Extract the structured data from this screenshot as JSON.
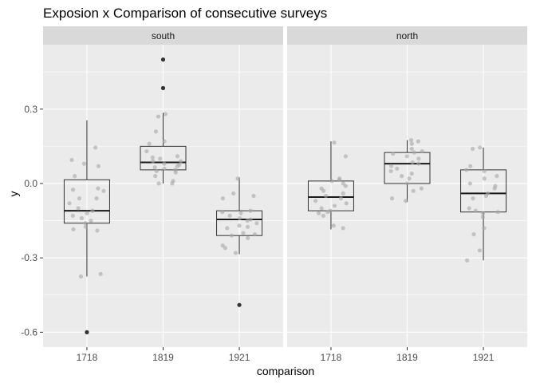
{
  "chart_data": {
    "type": "boxplot",
    "title": "Exposion x Comparison of consecutive surveys",
    "xlabel": "comparison",
    "ylabel": "y",
    "ylim": [
      -0.66,
      0.56
    ],
    "yticks": [
      -0.6,
      -0.3,
      0.0,
      0.3
    ],
    "ytick_labels": [
      "-0.6",
      "-0.3",
      "0.0",
      "0.3"
    ],
    "categories": [
      "1718",
      "1819",
      "1921"
    ],
    "panels": [
      {
        "name": "south",
        "boxes": [
          {
            "category": "1718",
            "min": -0.375,
            "q1": -0.16,
            "median": -0.11,
            "q3": 0.015,
            "max": 0.255,
            "outliers": [
              -0.6
            ],
            "jitter": [
              0.145,
              0.095,
              0.08,
              0.07,
              0.03,
              -0.02,
              -0.025,
              -0.03,
              -0.06,
              -0.06,
              -0.08,
              -0.1,
              -0.11,
              -0.12,
              -0.13,
              -0.14,
              -0.15,
              -0.16,
              -0.175,
              -0.185,
              -0.19,
              -0.365,
              -0.375
            ]
          },
          {
            "category": "1819",
            "min": 0.0,
            "q1": 0.055,
            "median": 0.085,
            "q3": 0.15,
            "max": 0.285,
            "outliers": [
              0.5,
              0.385
            ],
            "jitter": [
              0.28,
              0.27,
              0.21,
              0.17,
              0.16,
              0.13,
              0.11,
              0.105,
              0.1,
              0.09,
              0.09,
              0.08,
              0.075,
              0.07,
              0.065,
              0.06,
              0.055,
              0.05,
              0.045,
              0.03,
              0.01,
              0.0,
              0.0
            ]
          },
          {
            "category": "1921",
            "min": -0.285,
            "q1": -0.21,
            "median": -0.145,
            "q3": -0.11,
            "max": 0.025,
            "outliers": [
              -0.49
            ],
            "jitter": [
              0.02,
              -0.04,
              -0.05,
              -0.06,
              -0.11,
              -0.115,
              -0.12,
              -0.13,
              -0.14,
              -0.145,
              -0.15,
              -0.16,
              -0.17,
              -0.175,
              -0.18,
              -0.2,
              -0.205,
              -0.21,
              -0.22,
              -0.25,
              -0.26,
              -0.28
            ]
          }
        ]
      },
      {
        "name": "north",
        "boxes": [
          {
            "category": "1718",
            "min": -0.185,
            "q1": -0.11,
            "median": -0.055,
            "q3": 0.01,
            "max": 0.17,
            "outliers": [],
            "jitter": [
              0.165,
              0.11,
              0.02,
              0.015,
              0.01,
              0.0,
              -0.01,
              -0.02,
              -0.03,
              -0.04,
              -0.05,
              -0.06,
              -0.07,
              -0.08,
              -0.09,
              -0.1,
              -0.11,
              -0.115,
              -0.12,
              -0.13,
              -0.17,
              -0.18
            ]
          },
          {
            "category": "1819",
            "min": -0.075,
            "q1": 0.0,
            "median": 0.08,
            "q3": 0.125,
            "max": 0.175,
            "outliers": [],
            "jitter": [
              0.175,
              0.17,
              0.16,
              0.14,
              0.13,
              0.125,
              0.12,
              0.11,
              0.1,
              0.085,
              0.08,
              0.07,
              0.06,
              0.05,
              0.04,
              0.03,
              0.02,
              0.0,
              -0.02,
              -0.03,
              -0.06,
              -0.07
            ]
          },
          {
            "category": "1921",
            "min": -0.31,
            "q1": -0.115,
            "median": -0.04,
            "q3": 0.055,
            "max": 0.145,
            "outliers": [],
            "jitter": [
              0.145,
              0.14,
              0.07,
              0.055,
              0.05,
              0.03,
              0.02,
              0.0,
              -0.01,
              -0.02,
              -0.04,
              -0.05,
              -0.06,
              -0.1,
              -0.11,
              -0.115,
              -0.12,
              -0.135,
              -0.18,
              -0.205,
              -0.27,
              -0.31
            ]
          }
        ]
      }
    ],
    "colors": {
      "panel_background": "#ebebeb",
      "strip_background": "#d9d9d9",
      "grid_major": "#ffffff",
      "box_line": "#333333",
      "jitter_point": "#a6a6a6",
      "outlier_point": "#333333",
      "tick_text": "#4d4d4d"
    }
  }
}
